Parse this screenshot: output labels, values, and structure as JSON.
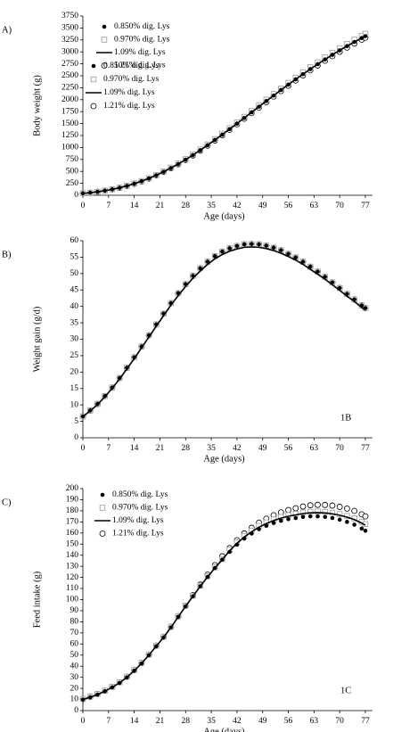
{
  "chart_data": [
    {
      "type": "line",
      "label": "A)",
      "ylabel": "Body weight (g)",
      "xlabel": "Age (days)",
      "x": [
        0,
        2,
        4,
        6,
        8,
        10,
        12,
        14,
        16,
        18,
        20,
        22,
        24,
        26,
        28,
        30,
        32,
        34,
        36,
        38,
        40,
        42,
        44,
        46,
        48,
        50,
        52,
        54,
        56,
        58,
        60,
        62,
        64,
        66,
        68,
        70,
        72,
        74,
        76,
        77
      ],
      "xlim": [
        0,
        77
      ],
      "xticks": [
        0,
        7,
        14,
        21,
        28,
        35,
        42,
        49,
        56,
        63,
        70,
        77
      ],
      "ylim": [
        0,
        3750
      ],
      "yticks": [
        0,
        250,
        500,
        750,
        1000,
        1250,
        1500,
        1750,
        2000,
        2250,
        2500,
        2750,
        3000,
        3250,
        3500,
        3750
      ],
      "series": [
        {
          "name": "0.850% dig. Lys",
          "color": "#000000",
          "marker": "dot",
          "values": [
            40,
            54,
            73,
            96,
            124,
            157,
            197,
            243,
            295,
            354,
            419,
            492,
            570,
            655,
            746,
            842,
            943,
            1048,
            1158,
            1269,
            1385,
            1500,
            1618,
            1736,
            1854,
            1971,
            2087,
            2202,
            2316,
            2426,
            2535,
            2640,
            2743,
            2843,
            2939,
            3032,
            3121,
            3207,
            3289,
            3330
          ]
        },
        {
          "name": "0.970% dig. Lys",
          "color": "#999999",
          "marker": "square",
          "values": [
            41,
            55,
            74,
            97,
            126,
            159,
            200,
            247,
            299,
            359,
            425,
            499,
            579,
            665,
            757,
            855,
            957,
            1064,
            1175,
            1288,
            1406,
            1523,
            1642,
            1762,
            1882,
            2001,
            2118,
            2235,
            2351,
            2462,
            2573,
            2680,
            2784,
            2886,
            2983,
            3077,
            3168,
            3255,
            3338,
            3380
          ]
        },
        {
          "name": "1.09% dig. Lys",
          "color": "#000000",
          "marker": "none",
          "values": [
            40,
            54,
            73,
            96,
            124,
            157,
            197,
            243,
            295,
            354,
            419,
            492,
            570,
            655,
            746,
            842,
            943,
            1048,
            1158,
            1269,
            1385,
            1500,
            1618,
            1736,
            1854,
            1971,
            2087,
            2202,
            2316,
            2426,
            2535,
            2640,
            2743,
            2843,
            2939,
            3032,
            3121,
            3207,
            3289,
            3330
          ]
        },
        {
          "name": "1.21% dig. Lys",
          "color": "#000000",
          "marker": "circle",
          "values": [
            40,
            53,
            72,
            95,
            123,
            155,
            195,
            241,
            292,
            350,
            415,
            487,
            564,
            648,
            739,
            834,
            934,
            1038,
            1146,
            1256,
            1371,
            1485,
            1602,
            1719,
            1835,
            1951,
            2066,
            2180,
            2293,
            2402,
            2510,
            2614,
            2716,
            2815,
            2910,
            3002,
            3090,
            3175,
            3256,
            3297
          ]
        }
      ]
    },
    {
      "type": "line",
      "label": "B)",
      "annotation": "1B",
      "ylabel": "Weight gain (g/d)",
      "xlabel": "Age (days)",
      "x": [
        0,
        2,
        4,
        6,
        8,
        10,
        12,
        14,
        16,
        18,
        20,
        22,
        24,
        26,
        28,
        30,
        32,
        34,
        36,
        38,
        40,
        42,
        44,
        46,
        48,
        50,
        52,
        54,
        56,
        58,
        60,
        62,
        64,
        66,
        68,
        70,
        72,
        74,
        76,
        77
      ],
      "xlim": [
        0,
        77
      ],
      "xticks": [
        0,
        7,
        14,
        21,
        28,
        35,
        42,
        49,
        56,
        63,
        70,
        77
      ],
      "ylim": [
        0,
        60
      ],
      "yticks": [
        0,
        5,
        10,
        15,
        20,
        25,
        30,
        35,
        40,
        45,
        50,
        55,
        60
      ],
      "series": [
        {
          "name": "0.850% dig. Lys",
          "color": "#000000",
          "marker": "dot",
          "values": [
            6.5,
            8.3,
            10.3,
            12.7,
            15.3,
            18.2,
            21.3,
            24.5,
            27.8,
            31.2,
            34.5,
            37.8,
            41.0,
            44.0,
            46.8,
            49.3,
            51.6,
            53.6,
            55.3,
            56.7,
            57.7,
            58.4,
            58.9,
            59.0,
            58.9,
            58.5,
            57.9,
            57.1,
            56.0,
            54.9,
            53.6,
            52.1,
            50.6,
            49.0,
            47.3,
            45.6,
            43.8,
            42.1,
            40.3,
            39.5
          ]
        },
        {
          "name": "0.970% dig. Lys",
          "color": "#999999",
          "marker": "square",
          "values": [
            6.5,
            8.3,
            10.3,
            12.7,
            15.3,
            18.2,
            21.3,
            24.5,
            27.8,
            31.2,
            34.5,
            37.8,
            41.0,
            44.0,
            46.8,
            49.3,
            51.6,
            53.6,
            55.3,
            56.7,
            57.7,
            58.4,
            58.9,
            59.0,
            58.9,
            58.5,
            57.9,
            57.1,
            56.0,
            54.9,
            53.6,
            52.1,
            50.6,
            49.0,
            47.3,
            45.6,
            43.8,
            42.1,
            40.3,
            39.5
          ]
        },
        {
          "name": "1.09% dig. Lys",
          "color": "#000000",
          "marker": "none",
          "values": [
            6.4,
            8.2,
            10.1,
            12.5,
            15.1,
            17.9,
            21.0,
            24.1,
            27.4,
            30.7,
            34.0,
            37.2,
            40.4,
            43.3,
            46.1,
            48.6,
            50.8,
            52.8,
            54.5,
            55.8,
            56.8,
            57.5,
            58.0,
            58.1,
            58.0,
            57.6,
            57.0,
            56.2,
            55.2,
            54.1,
            52.8,
            51.3,
            49.8,
            48.3,
            46.6,
            44.9,
            43.1,
            41.5,
            39.7,
            38.9
          ]
        },
        {
          "name": "1.21% dig. Lys",
          "color": "#000000",
          "marker": "circle",
          "values": [
            6.5,
            8.3,
            10.3,
            12.7,
            15.3,
            18.2,
            21.3,
            24.5,
            27.8,
            31.2,
            34.5,
            37.8,
            41.0,
            44.0,
            46.8,
            49.3,
            51.6,
            53.6,
            55.3,
            56.7,
            57.7,
            58.4,
            58.9,
            59.0,
            58.9,
            58.5,
            57.9,
            57.1,
            56.0,
            54.9,
            53.6,
            52.1,
            50.6,
            49.0,
            47.3,
            45.6,
            43.8,
            42.1,
            40.3,
            39.5
          ]
        }
      ]
    },
    {
      "type": "line",
      "label": "C)",
      "annotation": "1C",
      "ylabel": "Feed intake (g)",
      "xlabel": "Age (days)",
      "x": [
        0,
        2,
        4,
        6,
        8,
        10,
        12,
        14,
        16,
        18,
        20,
        22,
        24,
        26,
        28,
        30,
        32,
        34,
        36,
        38,
        40,
        42,
        44,
        46,
        48,
        50,
        52,
        54,
        56,
        58,
        60,
        62,
        64,
        66,
        68,
        70,
        72,
        74,
        76,
        77
      ],
      "xlim": [
        0,
        77
      ],
      "xticks": [
        0,
        7,
        14,
        21,
        28,
        35,
        42,
        49,
        56,
        63,
        70,
        77
      ],
      "ylim": [
        0,
        200
      ],
      "yticks": [
        0,
        10,
        20,
        30,
        40,
        50,
        60,
        70,
        80,
        90,
        100,
        110,
        120,
        130,
        140,
        150,
        160,
        170,
        180,
        190,
        200
      ],
      "series": [
        {
          "name": "0.850% dig. Lys",
          "color": "#000000",
          "marker": "dot",
          "values": [
            10,
            12,
            14.5,
            17.5,
            21,
            25,
            30,
            36,
            42.5,
            50,
            58,
            66,
            75,
            84.5,
            94,
            103,
            112,
            120.5,
            128.5,
            136,
            143,
            149.5,
            155,
            159.5,
            163.5,
            166.5,
            169,
            171,
            172.5,
            173.5,
            174.5,
            175,
            175,
            174.5,
            173.5,
            172,
            170,
            167.5,
            164,
            162
          ]
        },
        {
          "name": "0.970% dig. Lys",
          "color": "#999999",
          "marker": "square",
          "values": [
            10.5,
            12.5,
            15,
            18,
            21.5,
            25.5,
            30.5,
            36.5,
            43,
            50.5,
            58.5,
            66.5,
            75.5,
            85,
            94.5,
            103.5,
            112.5,
            121,
            129,
            136.5,
            145,
            151.7,
            157.4,
            162.1,
            166.3,
            169.5,
            172.2,
            174.4,
            176.1,
            177.3,
            178.5,
            179.2,
            179.4,
            179.1,
            178.3,
            177,
            175.3,
            173.1,
            169.9,
            168
          ]
        },
        {
          "name": "1.09% dig. Lys",
          "color": "#000000",
          "marker": "none",
          "values": [
            10,
            12,
            14.5,
            17.5,
            21,
            25,
            30,
            36,
            42.5,
            50,
            58,
            66,
            75,
            84.5,
            94,
            103,
            112,
            120.5,
            128.5,
            136,
            144,
            150.7,
            156.4,
            161.1,
            165.3,
            168.5,
            171.2,
            173.4,
            175.1,
            176.3,
            177.5,
            178.2,
            178.4,
            178.1,
            177.3,
            176,
            174.3,
            172.1,
            168.9,
            167
          ]
        },
        {
          "name": "1.21% dig. Lys",
          "color": "#000000",
          "marker": "circle",
          "values": [
            10.5,
            12.5,
            15,
            18,
            21.5,
            25.5,
            30.5,
            36.5,
            43,
            50.5,
            58.5,
            66.5,
            75.5,
            85,
            94.5,
            104,
            113.5,
            122.5,
            131,
            139,
            146.5,
            153.5,
            159.6,
            164.7,
            169.3,
            172.9,
            176,
            178.6,
            180.7,
            182.3,
            183.9,
            185,
            185.4,
            185.3,
            184.7,
            183.6,
            182,
            179.9,
            176.8,
            175
          ]
        }
      ]
    }
  ]
}
